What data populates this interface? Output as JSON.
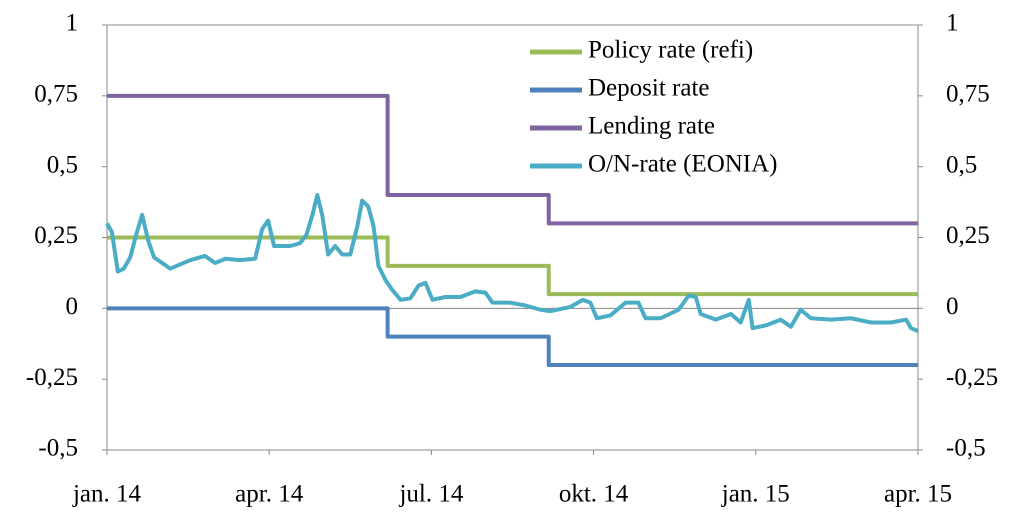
{
  "chart_data": {
    "type": "line",
    "xlim": [
      0,
      15
    ],
    "xticks": [
      {
        "value": 0,
        "label": "jan. 14"
      },
      {
        "value": 3,
        "label": "apr. 14"
      },
      {
        "value": 6,
        "label": "jul. 14"
      },
      {
        "value": 9,
        "label": "okt. 14"
      },
      {
        "value": 12,
        "label": "jan. 15"
      },
      {
        "value": 15,
        "label": "apr. 15"
      }
    ],
    "ylim": [
      -0.5,
      1
    ],
    "yticks": [
      {
        "value": -0.5,
        "label": "-0,5"
      },
      {
        "value": -0.25,
        "label": "-0,25"
      },
      0,
      {
        "value": 0.25,
        "label": "0,25"
      },
      {
        "value": 0.5,
        "label": "0,5"
      },
      {
        "value": 0.75,
        "label": "0,75"
      },
      1
    ],
    "y2lim": [
      -0.5,
      1
    ],
    "y2ticks": [
      {
        "value": -0.5,
        "label": "-0,5"
      },
      {
        "value": -0.25,
        "label": "-0,25"
      },
      0,
      {
        "value": 0.25,
        "label": "0,25"
      },
      {
        "value": 0.5,
        "label": "0,5"
      },
      {
        "value": 0.75,
        "label": "0,75"
      },
      1
    ],
    "legend": "top-right",
    "series": [
      {
        "name": "Policy rate (refi)",
        "color": "#9bbb59",
        "x": [
          0,
          5.19,
          5.19,
          8.17,
          8.17,
          15
        ],
        "values": [
          0.25,
          0.25,
          0.15,
          0.15,
          0.05,
          0.05
        ]
      },
      {
        "name": "Deposit rate",
        "color": "#4f81bd",
        "x": [
          0,
          5.19,
          5.19,
          8.17,
          8.17,
          15
        ],
        "values": [
          0,
          0,
          -0.1,
          -0.1,
          -0.2,
          -0.2
        ]
      },
      {
        "name": "Lending rate",
        "color": "#8064a2",
        "x": [
          0,
          5.19,
          5.19,
          8.17,
          8.17,
          15
        ],
        "values": [
          0.75,
          0.75,
          0.4,
          0.4,
          0.3,
          0.3
        ]
      },
      {
        "name": "O/N-rate (EONIA)",
        "color": "#4bacc6",
        "x": [
          0,
          0.09,
          0.2,
          0.31,
          0.43,
          0.54,
          0.65,
          0.76,
          0.87,
          1.02,
          1.17,
          1.35,
          1.54,
          1.81,
          2,
          2.19,
          2.46,
          2.74,
          2.87,
          2.98,
          3.09,
          3.39,
          3.57,
          3.69,
          3.8,
          3.89,
          3.98,
          4.09,
          4.22,
          4.35,
          4.5,
          4.63,
          4.72,
          4.83,
          4.93,
          5.02,
          5.15,
          5.28,
          5.43,
          5.61,
          5.76,
          5.89,
          6.02,
          6.26,
          6.54,
          6.81,
          7,
          7.13,
          7.46,
          7.74,
          8.02,
          8.2,
          8.57,
          8.8,
          8.94,
          9.06,
          9.31,
          9.59,
          9.83,
          9.96,
          10.24,
          10.57,
          10.76,
          10.89,
          10.98,
          11.26,
          11.54,
          11.72,
          11.87,
          11.94,
          12.19,
          12.46,
          12.65,
          12.83,
          13.02,
          13.39,
          13.76,
          14.13,
          14.5,
          14.78,
          14.87,
          15
        ],
        "values": [
          0.3,
          0.27,
          0.13,
          0.14,
          0.18,
          0.26,
          0.33,
          0.24,
          0.18,
          0.16,
          0.14,
          0.155,
          0.17,
          0.185,
          0.16,
          0.175,
          0.17,
          0.175,
          0.28,
          0.31,
          0.22,
          0.22,
          0.23,
          0.26,
          0.33,
          0.4,
          0.33,
          0.19,
          0.22,
          0.19,
          0.19,
          0.29,
          0.38,
          0.36,
          0.29,
          0.15,
          0.1,
          0.064,
          0.03,
          0.035,
          0.08,
          0.09,
          0.03,
          0.04,
          0.04,
          0.06,
          0.055,
          0.02,
          0.02,
          0.01,
          -0.005,
          -0.01,
          0.005,
          0.03,
          0.02,
          -0.035,
          -0.025,
          0.02,
          0.02,
          -0.035,
          -0.035,
          -0.005,
          0.045,
          0.04,
          -0.02,
          -0.04,
          -0.02,
          -0.05,
          0.03,
          -0.07,
          -0.06,
          -0.04,
          -0.065,
          -0.005,
          -0.035,
          -0.04,
          -0.035,
          -0.05,
          -0.05,
          -0.04,
          -0.07,
          -0.08
        ]
      }
    ]
  }
}
